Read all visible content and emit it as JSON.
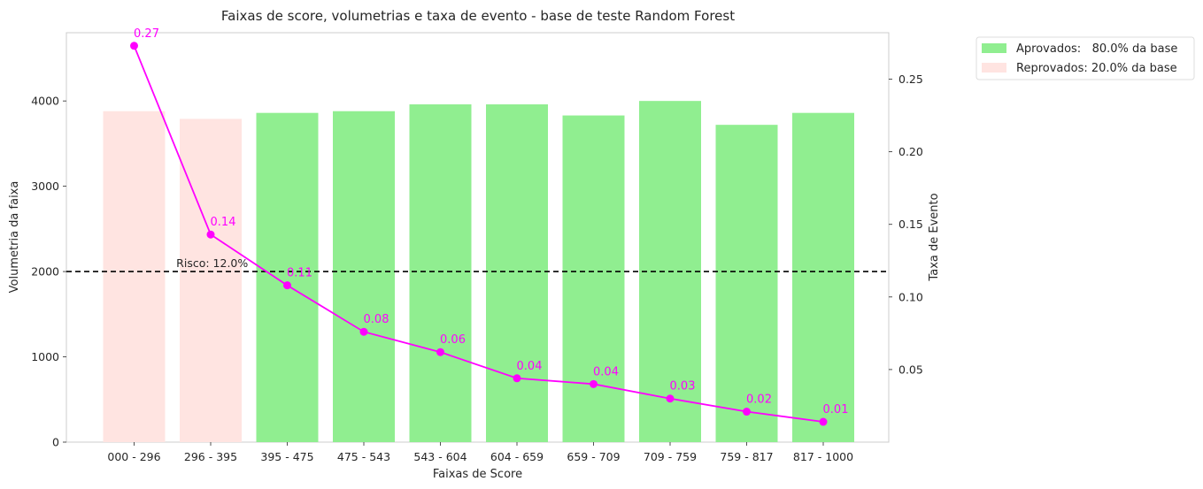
{
  "chart_data": {
    "type": "bar",
    "title": "Faixas de score, volumetrias e taxa de evento - base de teste Random Forest",
    "xlabel": "Faixas de Score",
    "ylabel": "Volumetria da faixa",
    "y2label": "Taxa de Evento",
    "categories": [
      "000 - 296",
      "296 - 395",
      "395 - 475",
      "475 - 543",
      "543 - 604",
      "604 - 659",
      "659 - 709",
      "709 - 759",
      "759 - 817",
      "817 - 1000"
    ],
    "series": [
      {
        "type": "bar",
        "values": [
          3880,
          3790,
          3860,
          3880,
          3960,
          3960,
          3830,
          4000,
          3720,
          3860
        ],
        "groups": [
          "Reprovados",
          "Reprovados",
          "Aprovados",
          "Aprovados",
          "Aprovados",
          "Aprovados",
          "Aprovados",
          "Aprovados",
          "Aprovados",
          "Aprovados"
        ]
      },
      {
        "type": "line",
        "axis": "right",
        "values": [
          0.273,
          0.143,
          0.108,
          0.076,
          0.062,
          0.044,
          0.04,
          0.03,
          0.021,
          0.014
        ],
        "labels": [
          "0.27",
          "0.14",
          "0.11",
          "0.08",
          "0.06",
          "0.04",
          "0.04",
          "0.03",
          "0.02",
          "0.01"
        ],
        "color": "#ff00ff"
      }
    ],
    "ylim": [
      0,
      4800
    ],
    "y2lim": [
      0,
      0.282
    ],
    "yticks": [
      0,
      1000,
      2000,
      3000,
      4000
    ],
    "y2ticks": [
      0.05,
      0.1,
      0.15,
      0.2,
      0.25
    ],
    "y2tick_labels": [
      "0.05",
      "0.10",
      "0.15",
      "0.20",
      "0.25"
    ],
    "risk_line": {
      "value": 2000,
      "label": "Risco: 12.0%",
      "color": "#000000"
    },
    "legend": {
      "placement": "outside-top-right",
      "entries": [
        {
          "label": "Aprovados:   80.0% da base",
          "color": "#90ee90"
        },
        {
          "label": "Reprovados: 20.0% da base",
          "color": "#ffe4e1"
        }
      ]
    },
    "colors": {
      "Aprovados": "#90ee90",
      "Reprovados": "#ffe4e1",
      "line": "#ff00ff"
    },
    "grid": false
  }
}
